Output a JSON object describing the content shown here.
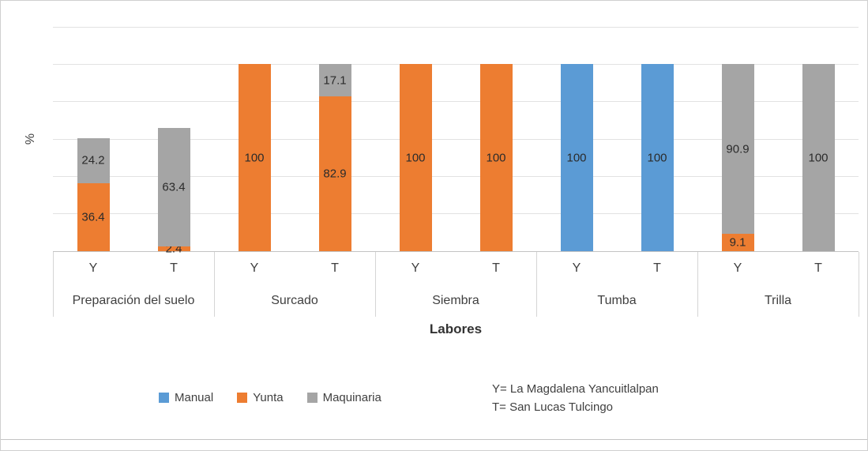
{
  "chart_data": {
    "type": "bar",
    "stacked": true,
    "title": "",
    "xlabel": "Labores",
    "ylabel": "%",
    "ylim": [
      0,
      120
    ],
    "grid_step": 20,
    "grid": true,
    "legend_position": "bottom",
    "groups": [
      "Preparación del suelo",
      "Surcado",
      "Siembra",
      "Tumba",
      "Trilla"
    ],
    "sub_categories": [
      "Y",
      "T"
    ],
    "series": [
      {
        "name": "Manual",
        "color": "#5B9BD5",
        "values": [
          [
            0,
            0
          ],
          [
            0,
            0
          ],
          [
            0,
            0
          ],
          [
            100,
            100
          ],
          [
            0,
            0
          ]
        ]
      },
      {
        "name": "Yunta",
        "color": "#ED7D31",
        "values": [
          [
            36.4,
            2.4
          ],
          [
            100,
            82.9
          ],
          [
            100,
            100
          ],
          [
            0,
            0
          ],
          [
            9.1,
            0
          ]
        ]
      },
      {
        "name": "Maquinaria",
        "color": "#A5A5A5",
        "values": [
          [
            24.2,
            63.4
          ],
          [
            0,
            17.1
          ],
          [
            0,
            0
          ],
          [
            0,
            0
          ],
          [
            90.9,
            100
          ]
        ]
      }
    ],
    "notes": [
      "Y= La Magdalena Yancuitlalpan",
      "T= San Lucas Tulcingo"
    ]
  }
}
